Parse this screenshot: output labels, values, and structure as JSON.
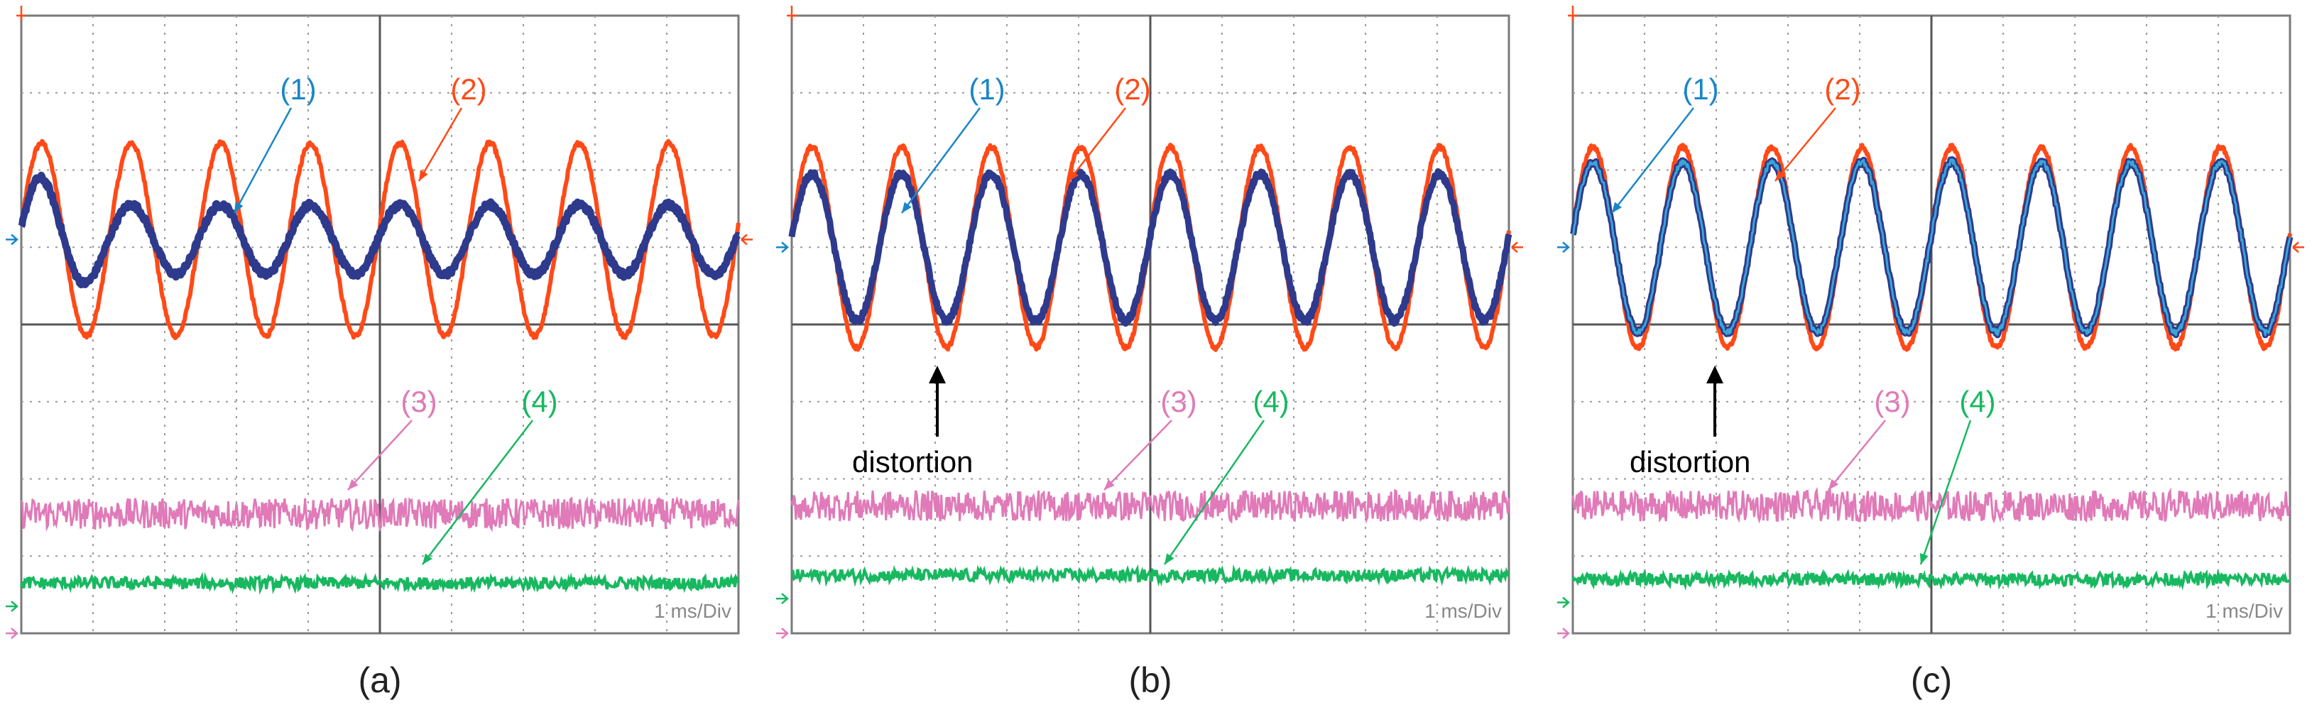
{
  "figure": {
    "panels": [
      {
        "label": "(a)",
        "time_base": "1 ms/Div",
        "distortion_note": ""
      },
      {
        "label": "(b)",
        "time_base": "1 ms/Div",
        "distortion_note": "distortion"
      },
      {
        "label": "(c)",
        "time_base": "1 ms/Div",
        "distortion_note": "distortion"
      }
    ]
  },
  "colors": {
    "trace1": "#2e3a8c",
    "trace1_label": "#1a86c8",
    "trace1_overlay": "#3aa6d6",
    "trace2": "#ff4a17",
    "trace3": "#e07ab8",
    "trace4": "#18b860",
    "grid": "#9a9a9a",
    "axis": "#555555",
    "frame": "#7a7a7a"
  },
  "chart_data": [
    {
      "type": "line",
      "title": "(a)",
      "xlabel": "1 ms/Div",
      "ylabel": "",
      "x_divisions": 10,
      "y_divisions": 8,
      "xlim": [
        0,
        10
      ],
      "ylim": [
        -4,
        4
      ],
      "grid": true,
      "series": [
        {
          "name": "(1)",
          "waveform": "sine",
          "periods": 8,
          "amplitude_div_start": 0.9,
          "amplitude_div_end": 0.45,
          "offset_div": 1.1,
          "width": 10
        },
        {
          "name": "(2)",
          "waveform": "sine",
          "periods": 8,
          "amplitude_div": 1.25,
          "offset_div": 1.1,
          "width": 6
        },
        {
          "name": "(3)",
          "waveform": "noise",
          "offset_div": -2.45,
          "band_div": 0.2
        },
        {
          "name": "(4)",
          "waveform": "noise",
          "offset_div": -3.35,
          "band_div": 0.08
        }
      ]
    },
    {
      "type": "line",
      "title": "(b)",
      "xlabel": "1 ms/Div",
      "ylabel": "",
      "x_divisions": 10,
      "y_divisions": 8,
      "xlim": [
        0,
        10
      ],
      "ylim": [
        -4,
        4
      ],
      "grid": true,
      "series": [
        {
          "name": "(1)",
          "waveform": "sine",
          "periods": 8,
          "amplitude_div": 0.95,
          "offset_div": 1.0,
          "width": 9
        },
        {
          "name": "(2)",
          "waveform": "sine",
          "periods": 8,
          "amplitude_div": 1.3,
          "offset_div": 1.0,
          "width": 6
        },
        {
          "name": "(3)",
          "waveform": "noise",
          "offset_div": -2.35,
          "band_div": 0.2
        },
        {
          "name": "(4)",
          "waveform": "noise",
          "offset_div": -3.25,
          "band_div": 0.08
        }
      ]
    },
    {
      "type": "line",
      "title": "(c)",
      "xlabel": "1 ms/Div",
      "ylabel": "",
      "x_divisions": 10,
      "y_divisions": 8,
      "xlim": [
        0,
        10
      ],
      "ylim": [
        -4,
        4
      ],
      "grid": true,
      "series": [
        {
          "name": "(1)",
          "waveform": "sine",
          "periods": 8,
          "amplitude_div": 1.1,
          "offset_div": 1.0,
          "width": 9
        },
        {
          "name": "(2)",
          "waveform": "sine",
          "periods": 8,
          "amplitude_div": 1.3,
          "offset_div": 1.0,
          "width": 6
        },
        {
          "name": "(3)",
          "waveform": "noise",
          "offset_div": -2.35,
          "band_div": 0.2
        },
        {
          "name": "(4)",
          "waveform": "noise",
          "offset_div": -3.3,
          "band_div": 0.08
        }
      ]
    }
  ]
}
